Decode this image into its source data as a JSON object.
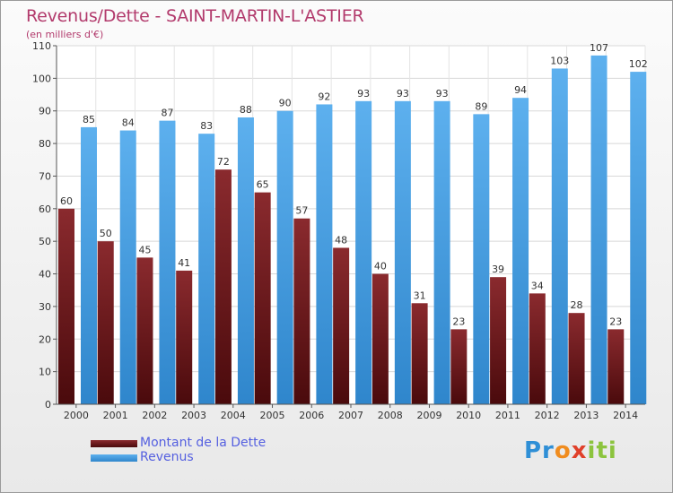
{
  "chart_data": {
    "type": "bar",
    "title": "Revenus/Dette - SAINT-MARTIN-L'ASTIER",
    "subtitle": "(en milliers d'€)",
    "categories": [
      "2000",
      "2001",
      "2002",
      "2003",
      "2004",
      "2005",
      "2006",
      "2007",
      "2008",
      "2009",
      "2010",
      "2011",
      "2012",
      "2013",
      "2014"
    ],
    "series": [
      {
        "name": "Montant de la Dette",
        "color": "#7a1e22",
        "values": [
          60,
          50,
          45,
          41,
          72,
          65,
          57,
          48,
          40,
          31,
          23,
          39,
          34,
          28,
          23
        ]
      },
      {
        "name": "Revenus",
        "color": "#4fa3e6",
        "values": [
          85,
          84,
          87,
          83,
          88,
          90,
          92,
          93,
          93,
          93,
          89,
          94,
          103,
          107,
          102
        ]
      }
    ],
    "ylim": [
      0,
      110
    ],
    "yticks": [
      0,
      10,
      20,
      30,
      40,
      50,
      60,
      70,
      80,
      90,
      100,
      110
    ],
    "grid": true,
    "legend": "bottom-left"
  },
  "branding": {
    "logo_text": [
      "Pr",
      "o",
      "x",
      "iti"
    ]
  }
}
